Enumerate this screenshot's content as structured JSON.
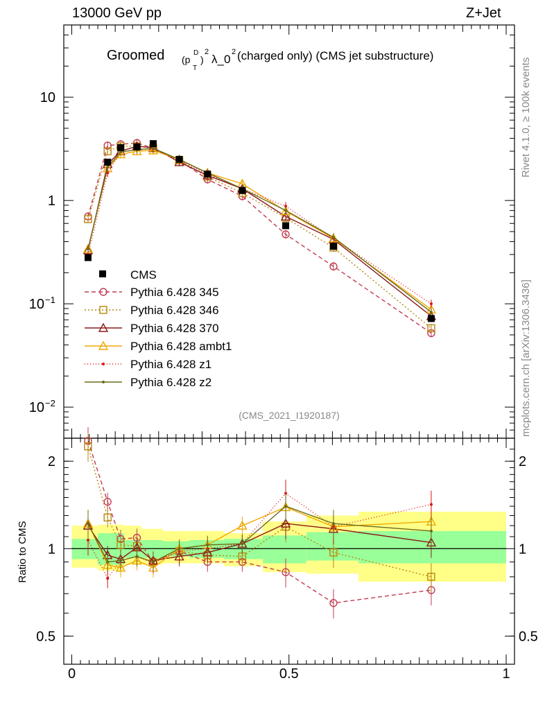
{
  "header": {
    "left": "13000 GeV pp",
    "right": "Z+Jet"
  },
  "side_labels": {
    "rivet": "Rivet 4.1.0, ≥ 100k events",
    "mcplots": "mcplots.cern.ch [arXiv:1306.3436]"
  },
  "colors": {
    "frame": "#000000",
    "band_inner": "#99ff99",
    "band_outer": "#ffff88",
    "grey": "#888888"
  },
  "chart_data": [
    {
      "type": "line",
      "panel": "main",
      "title": "Groomed (p_T^D)^2 λ_0^2  (charged only) (CMS jet substructure)",
      "title_parts": {
        "prefix": "Groomed",
        "p": "(p",
        "sub": "T",
        "sup_d": "D",
        "close": ")",
        "sq": "2",
        "mid": "λ_0",
        "suffix": "  (charged only) (CMS jet substructure)"
      },
      "analysis_id": "(CMS_2021_I1920187)",
      "yscale": "log",
      "ylim": [
        0.005,
        50
      ],
      "xlim": [
        0,
        1
      ],
      "yticks": [
        {
          "v": 0.01,
          "base": "10",
          "exp": "−2"
        },
        {
          "v": 0.1,
          "base": "10",
          "exp": "−1"
        },
        {
          "v": 1,
          "base": "1",
          "exp": ""
        },
        {
          "v": 10,
          "base": "10",
          "exp": ""
        }
      ],
      "x": [
        0.0375,
        0.0825,
        0.1125,
        0.15,
        0.1875,
        0.2475,
        0.3125,
        0.3925,
        0.4925,
        0.6025,
        0.8275
      ],
      "data": {
        "name": "CMS",
        "values": [
          0.28,
          2.35,
          3.25,
          3.3,
          3.55,
          2.5,
          1.8,
          1.25,
          0.57,
          0.36,
          0.072
        ],
        "errors": [
          0.03,
          0.15,
          0.15,
          0.15,
          0.15,
          0.1,
          0.08,
          0.06,
          0.04,
          0.03,
          0.007
        ]
      },
      "series": [
        {
          "name": "Pythia 6.428 345",
          "color": "#c23b50",
          "dash": "6,4",
          "marker": "circle-open",
          "values": [
            0.7,
            3.4,
            3.5,
            3.6,
            3.2,
            2.45,
            1.6,
            1.1,
            0.47,
            0.23,
            0.052
          ]
        },
        {
          "name": "Pythia 6.428 346",
          "color": "#b8860b",
          "dash": "2,3",
          "marker": "square-open",
          "values": [
            0.66,
            3.0,
            3.35,
            3.35,
            3.2,
            2.45,
            1.7,
            1.18,
            0.68,
            0.35,
            0.058
          ]
        },
        {
          "name": "Pythia 6.428 370",
          "color": "#8b1a1a",
          "dash": "",
          "marker": "triangle-open",
          "values": [
            0.33,
            2.25,
            3.0,
            3.35,
            3.25,
            2.35,
            1.75,
            1.3,
            0.7,
            0.42,
            0.076
          ]
        },
        {
          "name": "Pythia 6.428 ambt1",
          "color": "#f0a800",
          "dash": "",
          "marker": "triangle-open",
          "values": [
            0.34,
            2.05,
            2.8,
            3.0,
            3.05,
            2.5,
            1.85,
            1.45,
            0.79,
            0.43,
            0.088
          ]
        },
        {
          "name": "Pythia 6.428 z1",
          "color": "#dd1111",
          "dash": "1,3",
          "marker": "dot",
          "values": [
            0.3,
            1.85,
            2.95,
            3.1,
            3.15,
            2.45,
            1.8,
            1.3,
            0.88,
            0.43,
            0.1
          ]
        },
        {
          "name": "Pythia 6.428 z2",
          "color": "#6b6b1a",
          "dash": "",
          "marker": "dot",
          "values": [
            0.34,
            2.1,
            2.95,
            3.1,
            3.2,
            2.5,
            1.85,
            1.3,
            0.8,
            0.44,
            0.083
          ]
        }
      ],
      "legend_position": "middle-left"
    },
    {
      "type": "line",
      "panel": "ratio",
      "ylabel": "Ratio to CMS",
      "xlabel": "",
      "yscale": "log",
      "ylim": [
        0.4,
        2.4
      ],
      "xlim": [
        0,
        1
      ],
      "yticks": [
        {
          "v": 0.5,
          "label": "0.5"
        },
        {
          "v": 1,
          "label": "1"
        },
        {
          "v": 2,
          "label": "2"
        }
      ],
      "xticks": [
        {
          "v": 0,
          "label": "0"
        },
        {
          "v": 0.5,
          "label": "0.5"
        },
        {
          "v": 1,
          "label": "1"
        }
      ],
      "bins": [
        0,
        0.06,
        0.09,
        0.12,
        0.16,
        0.21,
        0.27,
        0.35,
        0.44,
        0.54,
        0.66,
        1.0
      ],
      "band_inner": [
        [
          0.92,
          1.08
        ],
        [
          0.88,
          1.13
        ],
        [
          0.88,
          1.13
        ],
        [
          0.93,
          1.07
        ],
        [
          0.93,
          1.07
        ],
        [
          0.94,
          1.06
        ],
        [
          0.93,
          1.07
        ],
        [
          0.92,
          1.08
        ],
        [
          0.89,
          1.11
        ],
        [
          0.91,
          1.14
        ],
        [
          0.89,
          1.15
        ]
      ],
      "band_outer": [
        [
          0.86,
          1.2
        ],
        [
          0.84,
          1.21
        ],
        [
          0.84,
          1.21
        ],
        [
          0.88,
          1.2
        ],
        [
          0.88,
          1.17
        ],
        [
          0.89,
          1.15
        ],
        [
          0.89,
          1.15
        ],
        [
          0.87,
          1.13
        ],
        [
          0.83,
          1.24
        ],
        [
          0.82,
          1.3
        ],
        [
          0.77,
          1.34
        ]
      ],
      "x": [
        0.0375,
        0.0825,
        0.1125,
        0.15,
        0.1875,
        0.2475,
        0.3125,
        0.3925,
        0.4925,
        0.6025,
        0.8275
      ],
      "series": [
        {
          "name": "Pythia 6.428 345",
          "values": [
            2.35,
            1.45,
            1.08,
            1.09,
            0.9,
            0.98,
            0.9,
            0.9,
            0.83,
            0.65,
            0.72
          ]
        },
        {
          "name": "Pythia 6.428 346",
          "values": [
            2.25,
            1.28,
            1.03,
            1.02,
            0.9,
            0.98,
            0.95,
            0.94,
            1.19,
            0.97,
            0.8
          ]
        },
        {
          "name": "Pythia 6.428 370",
          "values": [
            1.2,
            0.95,
            0.92,
            1.01,
            0.91,
            0.94,
            0.97,
            1.04,
            1.22,
            1.17,
            1.05
          ]
        },
        {
          "name": "Pythia 6.428 ambt1",
          "values": [
            1.22,
            0.88,
            0.86,
            0.91,
            0.86,
            1.0,
            1.03,
            1.2,
            1.39,
            1.19,
            1.24
          ]
        },
        {
          "name": "Pythia 6.428 z1",
          "values": [
            1.07,
            0.79,
            0.91,
            0.94,
            0.89,
            0.98,
            1.0,
            1.04,
            1.55,
            1.19,
            1.42
          ]
        },
        {
          "name": "Pythia 6.428 z2",
          "values": [
            1.22,
            0.9,
            0.91,
            0.94,
            0.9,
            1.0,
            1.03,
            1.04,
            1.4,
            1.22,
            1.15
          ]
        }
      ]
    }
  ]
}
